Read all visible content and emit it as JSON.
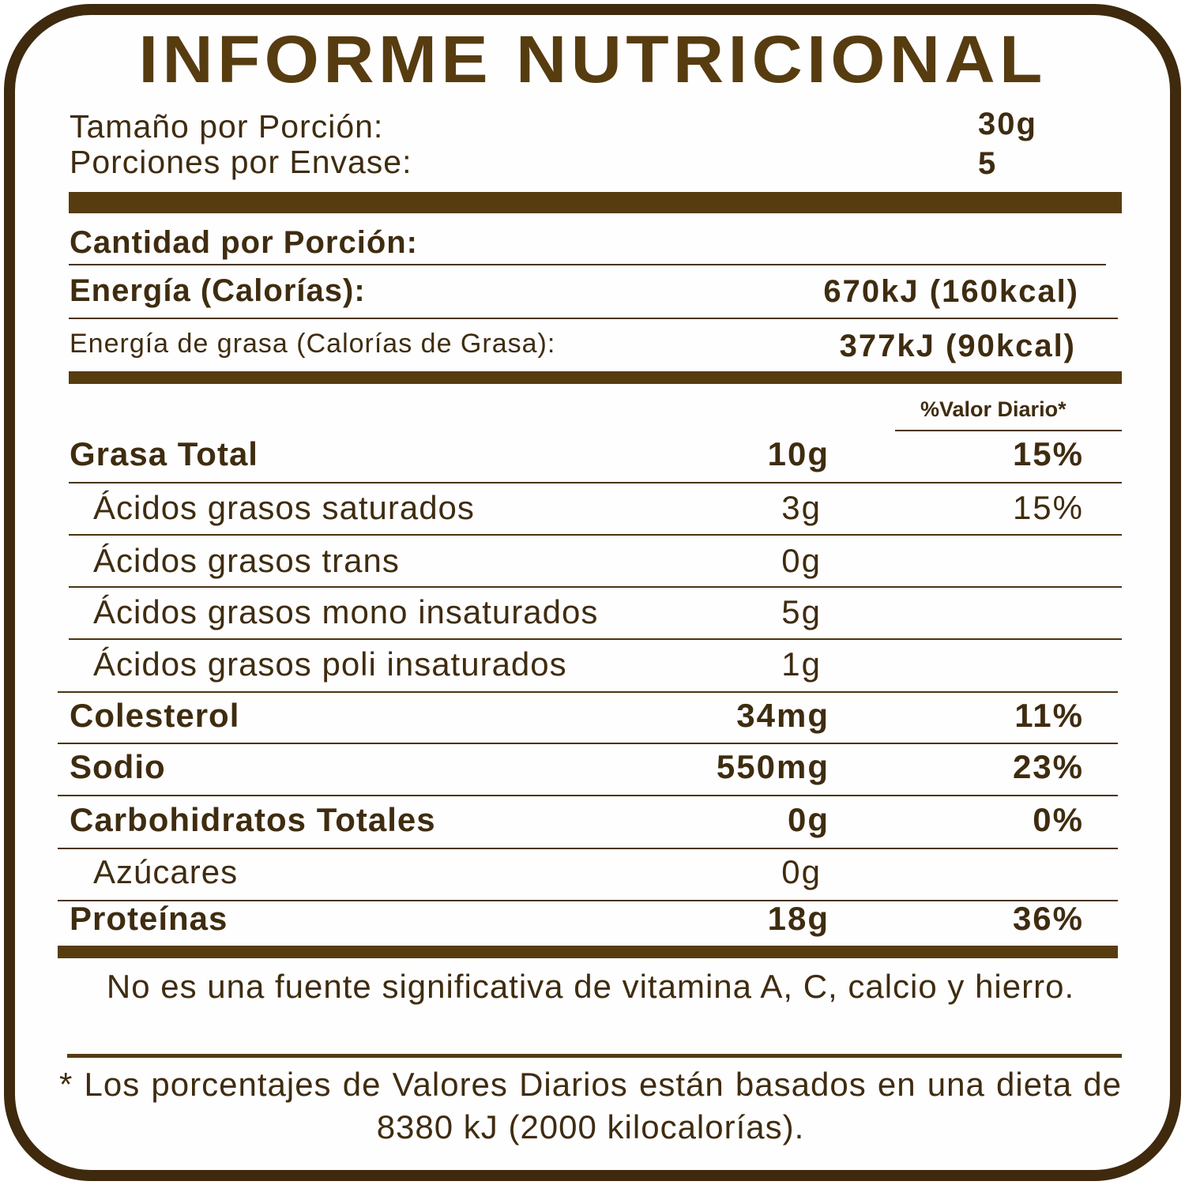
{
  "title": "INFORME NUTRICIONAL",
  "serving": {
    "size_label": "Tamaño por Porción:",
    "size_value": "30g",
    "per_container_label": "Porciones por Envase:",
    "per_container_value": "5"
  },
  "amount_per_serving": "Cantidad por Porción:",
  "energy": {
    "label": "Energía (Calorías):",
    "value": "670kJ (160kcal)"
  },
  "fat_energy": {
    "label": "Energía de grasa (Calorías de  Grasa):",
    "value": "377kJ (90kcal)"
  },
  "daily_value_header": "%Valor Diario*",
  "nutrients": [
    {
      "name": "Grasa Total",
      "amount": "10g",
      "dv": "15%",
      "bold": true,
      "indent": false
    },
    {
      "name": "Ácidos grasos saturados",
      "amount": "3g",
      "dv": "15%",
      "bold": false,
      "indent": true
    },
    {
      "name": "Ácidos grasos trans",
      "amount": "0g",
      "dv": "",
      "bold": false,
      "indent": true
    },
    {
      "name": "Ácidos grasos mono insaturados",
      "amount": "5g",
      "dv": "",
      "bold": false,
      "indent": true
    },
    {
      "name": "Ácidos grasos poli insaturados",
      "amount": "1g",
      "dv": "",
      "bold": false,
      "indent": true
    },
    {
      "name": "Colesterol",
      "amount": "34mg",
      "dv": "11%",
      "bold": true,
      "indent": false
    },
    {
      "name": "Sodio",
      "amount": "550mg",
      "dv": "23%",
      "bold": true,
      "indent": false
    },
    {
      "name": "Carbohidratos Totales",
      "amount": "0g",
      "dv": "0%",
      "bold": true,
      "indent": false
    },
    {
      "name": "Azúcares",
      "amount": "0g",
      "dv": "",
      "bold": false,
      "indent": true
    },
    {
      "name": "Proteínas",
      "amount": "18g",
      "dv": "36%",
      "bold": true,
      "indent": false
    }
  ],
  "note": "No es una fuente significativa de vitamina A, C, calcio y hierro.",
  "footnote": "* Los porcentajes de Valores Diarios están basados en una dieta de 8380 kJ (2000 kilocalorías).",
  "colors": {
    "border": "#3f2a0e",
    "title": "#573c10",
    "text": "#3f2c10"
  }
}
